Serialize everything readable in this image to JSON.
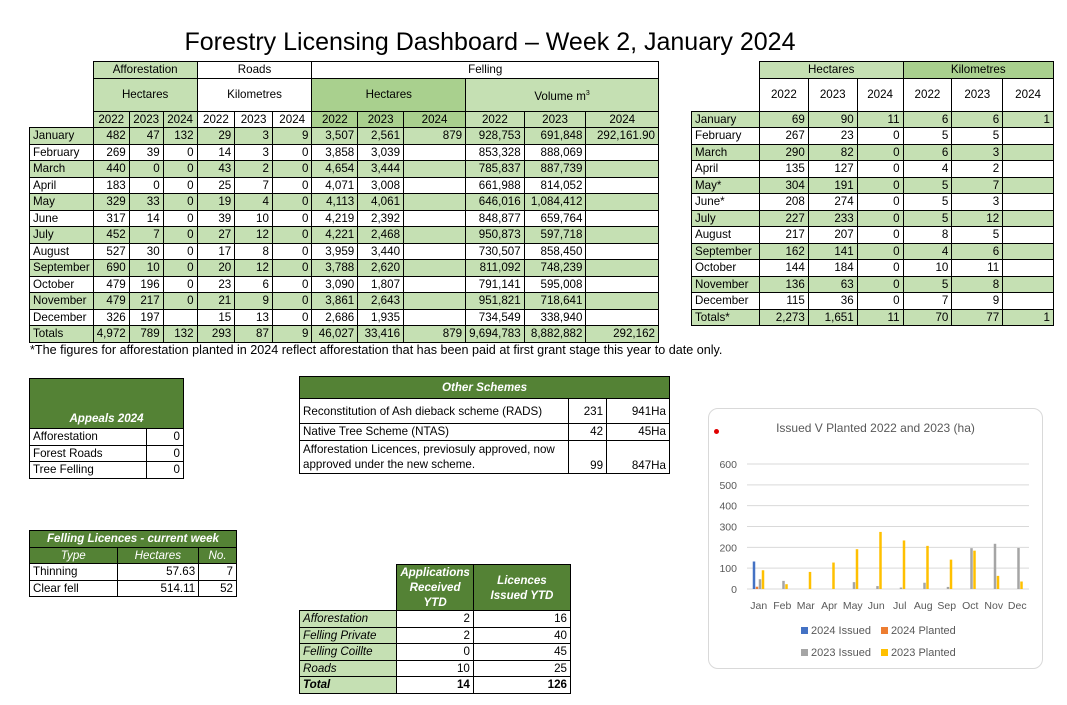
{
  "title": "Forestry Licensing Dashboard – Week 2, January 2024",
  "main_table": {
    "group_headers": {
      "afforestation": "Afforestation",
      "roads": "Roads",
      "felling": "Felling"
    },
    "sub_headers": {
      "aff_unit": "Hectares",
      "roads_unit": "Kilometres",
      "felling_ha": "Hectares",
      "felling_vol": "Volume m",
      "felling_vol_sup": "3"
    },
    "years": [
      "2022",
      "2023",
      "2024",
      "2022",
      "2023",
      "2024",
      "2022",
      "2023",
      "2024",
      "2022",
      "2023",
      "2024"
    ],
    "rows": [
      [
        "January",
        "482",
        "47",
        "132",
        "29",
        "3",
        "9",
        "3,507",
        "2,561",
        "879",
        "928,753",
        "691,848",
        "292,161.90"
      ],
      [
        "February",
        "269",
        "39",
        "0",
        "14",
        "3",
        "0",
        "3,858",
        "3,039",
        "",
        "853,328",
        "888,069",
        ""
      ],
      [
        "March",
        "440",
        "0",
        "0",
        "43",
        "2",
        "0",
        "4,654",
        "3,444",
        "",
        "785,837",
        "887,739",
        ""
      ],
      [
        "April",
        "183",
        "0",
        "0",
        "25",
        "7",
        "0",
        "4,071",
        "3,008",
        "",
        "661,988",
        "814,052",
        ""
      ],
      [
        "May",
        "329",
        "33",
        "0",
        "19",
        "4",
        "0",
        "4,113",
        "4,061",
        "",
        "646,016",
        "1,084,412",
        ""
      ],
      [
        "June",
        "317",
        "14",
        "0",
        "39",
        "10",
        "0",
        "4,219",
        "2,392",
        "",
        "848,877",
        "659,764",
        ""
      ],
      [
        "July",
        "452",
        "7",
        "0",
        "27",
        "12",
        "0",
        "4,221",
        "2,468",
        "",
        "950,873",
        "597,718",
        ""
      ],
      [
        "August",
        "527",
        "30",
        "0",
        "17",
        "8",
        "0",
        "3,959",
        "3,440",
        "",
        "730,507",
        "858,450",
        ""
      ],
      [
        "September",
        "690",
        "10",
        "0",
        "20",
        "12",
        "0",
        "3,788",
        "2,620",
        "",
        "811,092",
        "748,239",
        ""
      ],
      [
        "October",
        "479",
        "196",
        "0",
        "23",
        "6",
        "0",
        "3,090",
        "1,807",
        "",
        "791,141",
        "595,008",
        ""
      ],
      [
        "November",
        "479",
        "217",
        "0",
        "21",
        "9",
        "0",
        "3,861",
        "2,643",
        "",
        "951,821",
        "718,641",
        ""
      ],
      [
        "December",
        "326",
        "197",
        "",
        "15",
        "13",
        "0",
        "2,686",
        "1,935",
        "",
        "734,549",
        "338,940",
        ""
      ],
      [
        "Totals",
        "4,972",
        "789",
        "132",
        "293",
        "87",
        "9",
        "46,027",
        "33,416",
        "879",
        "9,694,783",
        "8,882,882",
        "292,162"
      ]
    ]
  },
  "note": "*The figures for afforestation planted in 2024 reflect afforestation that has been paid at first grant stage this year to date only.",
  "right_table": {
    "group_headers": {
      "hectares": "Hectares",
      "kilometres": "Kilometres"
    },
    "years": [
      "2022",
      "2023",
      "2024",
      "2022",
      "2023",
      "2024"
    ],
    "rows": [
      [
        "January",
        "69",
        "90",
        "11",
        "6",
        "6",
        "1"
      ],
      [
        "February",
        "267",
        "23",
        "0",
        "5",
        "5",
        ""
      ],
      [
        "March",
        "290",
        "82",
        "0",
        "6",
        "3",
        ""
      ],
      [
        "April",
        "135",
        "127",
        "0",
        "4",
        "2",
        ""
      ],
      [
        "May*",
        "304",
        "191",
        "0",
        "5",
        "7",
        ""
      ],
      [
        "June*",
        "208",
        "274",
        "0",
        "5",
        "3",
        ""
      ],
      [
        "July",
        "227",
        "233",
        "0",
        "5",
        "12",
        ""
      ],
      [
        "August",
        "217",
        "207",
        "0",
        "8",
        "5",
        ""
      ],
      [
        "September",
        "162",
        "141",
        "0",
        "4",
        "6",
        ""
      ],
      [
        "October",
        "144",
        "184",
        "0",
        "10",
        "11",
        ""
      ],
      [
        "November",
        "136",
        "63",
        "0",
        "5",
        "8",
        ""
      ],
      [
        "December",
        "115",
        "36",
        "0",
        "7",
        "9",
        ""
      ],
      [
        "Totals*",
        "2,273",
        "1,651",
        "11",
        "70",
        "77",
        "1"
      ]
    ]
  },
  "appeals": {
    "title": "Appeals 2024",
    "rows": [
      [
        "Afforestation",
        "0"
      ],
      [
        "Forest Roads",
        "0"
      ],
      [
        "Tree Felling",
        "0"
      ]
    ]
  },
  "other_schemes": {
    "title": "Other Schemes",
    "rows": [
      {
        "label": "Reconstitution of Ash dieback scheme (RADS)",
        "count": "231",
        "area": "941Ha"
      },
      {
        "label": "Native Tree Scheme (NTAS)",
        "count": "42",
        "area": "45Ha"
      },
      {
        "label": "Afforestation Licences, previosuly approved, now approved under the new scheme.",
        "count": "99",
        "area": "847Ha"
      }
    ]
  },
  "felling_licences": {
    "title": "Felling Licences - current week",
    "headers": [
      "Type",
      "Hectares",
      "No."
    ],
    "rows": [
      [
        "Thinning",
        "57.63",
        "7"
      ],
      [
        "Clear fell",
        "514.11",
        "52"
      ]
    ]
  },
  "applications": {
    "headers": [
      "Applications Received YTD",
      "Licences Issued YTD"
    ],
    "rows": [
      [
        "Afforestation",
        "2",
        "16"
      ],
      [
        "Felling Private",
        "2",
        "40"
      ],
      [
        "Felling Coillte",
        "0",
        "45"
      ],
      [
        "Roads",
        "10",
        "25"
      ],
      [
        "Total",
        "14",
        "126"
      ]
    ]
  },
  "chart_data": {
    "type": "bar",
    "title": "Issued V Planted 2022 and 2023 (ha)",
    "categories": [
      "Jan",
      "Feb",
      "Mar",
      "Apr",
      "May",
      "Jun",
      "Jul",
      "Aug",
      "Sep",
      "Oct",
      "Nov",
      "Dec"
    ],
    "ylim": [
      0,
      600
    ],
    "yticks": [
      "0",
      "100",
      "200",
      "300",
      "400",
      "500",
      "600"
    ],
    "grid": true,
    "legend": "bottom",
    "series": [
      {
        "name": "2024 Issued",
        "color": "#4472c4",
        "values": [
          132,
          0,
          0,
          0,
          0,
          0,
          0,
          0,
          0,
          0,
          0,
          0
        ]
      },
      {
        "name": "2024 Planted",
        "color": "#ed7d31",
        "values": [
          11,
          0,
          0,
          0,
          0,
          0,
          0,
          0,
          0,
          0,
          0,
          0
        ]
      },
      {
        "name": "2023 Issued",
        "color": "#a5a5a5",
        "values": [
          47,
          39,
          0,
          0,
          33,
          14,
          7,
          30,
          10,
          196,
          217,
          197
        ]
      },
      {
        "name": "2023 Planted",
        "color": "#ffc000",
        "values": [
          90,
          23,
          82,
          127,
          191,
          274,
          233,
          207,
          141,
          184,
          63,
          36
        ]
      }
    ]
  }
}
